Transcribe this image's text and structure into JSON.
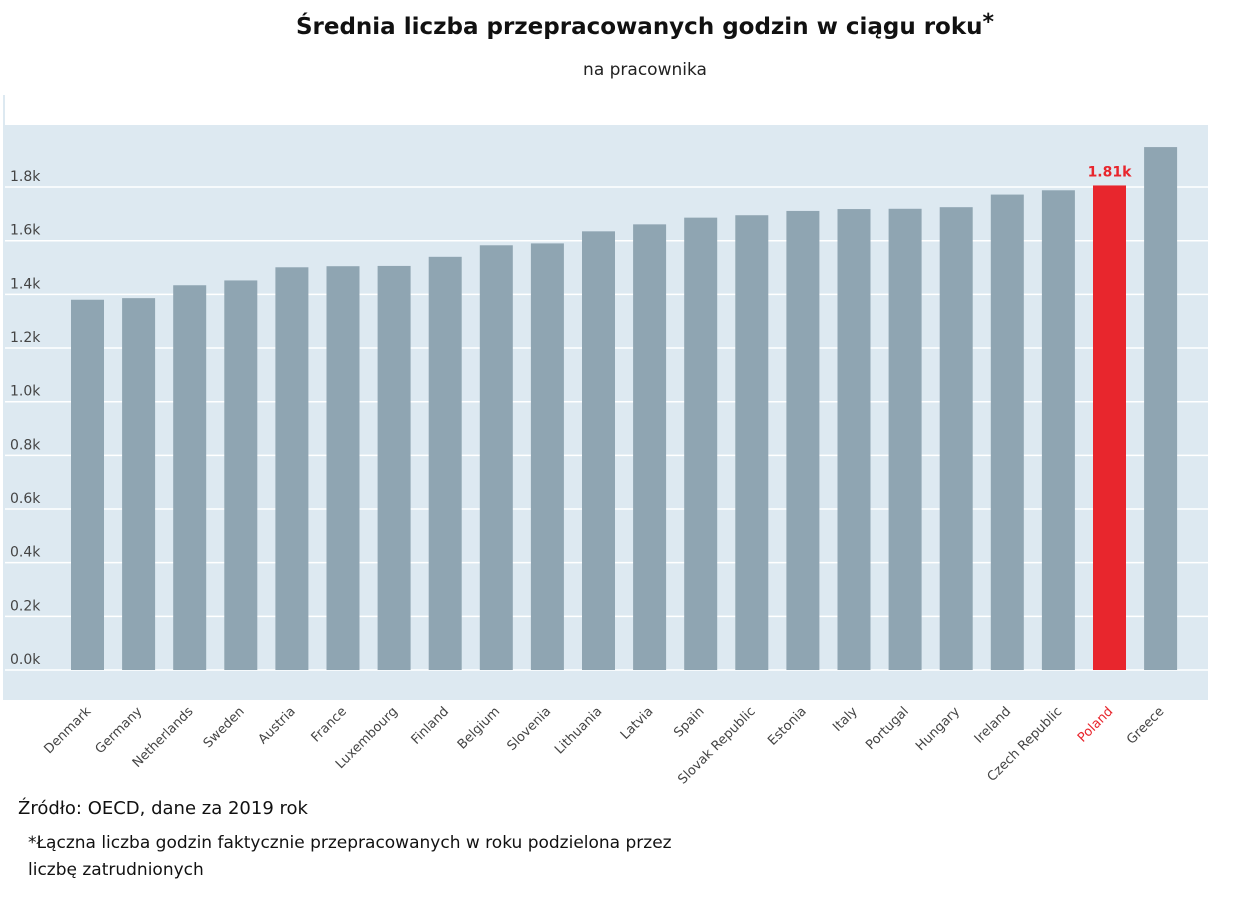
{
  "title": "Średnia liczba przepracowanych godzin w ciągu roku",
  "title_mark": "*",
  "subtitle": "na pracownika",
  "source": "Źródło: OECD, dane za 2019 rok",
  "footnote": "*Łączna liczba godzin faktycznie przepracowanych w roku podzielona przez liczbę zatrudnionych",
  "colors": {
    "bar": "#8fa5b2",
    "highlight": "#e8262d",
    "plot_bg": "#dde9f1",
    "grid": "#ffffff"
  },
  "chart_data": {
    "type": "bar",
    "categories": [
      "Denmark",
      "Germany",
      "Netherlands",
      "Sweden",
      "Austria",
      "France",
      "Luxembourg",
      "Finland",
      "Belgium",
      "Slovenia",
      "Lithuania",
      "Latvia",
      "Spain",
      "Slovak Republic",
      "Estonia",
      "Italy",
      "Portugal",
      "Hungary",
      "Ireland",
      "Czech Republic",
      "Poland",
      "Greece"
    ],
    "values": [
      1380,
      1386,
      1434,
      1452,
      1501,
      1505,
      1506,
      1540,
      1583,
      1590,
      1635,
      1661,
      1686,
      1695,
      1711,
      1718,
      1719,
      1725,
      1772,
      1788,
      1806,
      1949
    ],
    "highlight": "Poland",
    "data_labels": {
      "Poland": "1.81k"
    },
    "yticks": [
      "0.0k",
      "0.2k",
      "0.4k",
      "0.6k",
      "0.8k",
      "1.0k",
      "1.2k",
      "1.4k",
      "1.6k",
      "1.8k"
    ],
    "ytick_values": [
      0,
      200,
      400,
      600,
      800,
      1000,
      1200,
      1400,
      1600,
      1800
    ],
    "ylim": [
      0,
      2000
    ],
    "grid": true,
    "xlabel": "",
    "ylabel": ""
  }
}
